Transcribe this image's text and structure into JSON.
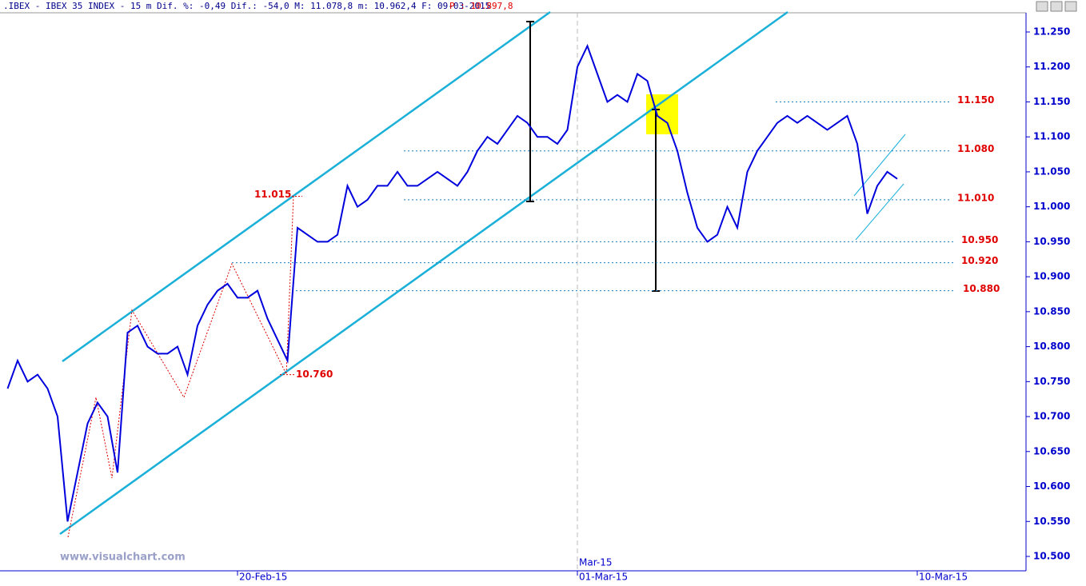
{
  "chart_data": {
    "type": "line",
    "header": {
      "text": ".IBEX - IBEX 35 INDEX -  15 m Dif. %: -0,49 Dif.: -54,0 M: 11.078,8 m: 10.962,4 F: 09-03-2015",
      "price": "P : 10.897,8"
    },
    "watermark": "www.visualchart.com",
    "month_label": "Mar-15",
    "categories": [
      null,
      null,
      null,
      null,
      null,
      null,
      null,
      null,
      null,
      null,
      null,
      null,
      null,
      null,
      null,
      null,
      null,
      null,
      null,
      null,
      null,
      null,
      null,
      "20-Feb-15",
      null,
      null,
      null,
      null,
      null,
      null,
      null,
      null,
      null,
      null,
      null,
      null,
      null,
      null,
      null,
      null,
      null,
      null,
      null,
      null,
      null,
      null,
      null,
      null,
      null,
      null,
      null,
      null,
      null,
      null,
      null,
      null,
      null,
      "01-Mar-15",
      null,
      null,
      null,
      null,
      null,
      null,
      null,
      null,
      null,
      null,
      null,
      null,
      null,
      null,
      null,
      null,
      null,
      null,
      null,
      null,
      null,
      null,
      null,
      null,
      null,
      null,
      null,
      null,
      null,
      null,
      null,
      null,
      null,
      "10-Mar-15"
    ],
    "series": [
      {
        "name": "IBEX 35",
        "color": "#0000dd",
        "values": [
          10.74,
          10.78,
          10.75,
          10.76,
          10.74,
          10.7,
          10.55,
          10.62,
          10.69,
          10.72,
          10.7,
          10.62,
          10.82,
          10.83,
          10.8,
          10.79,
          10.79,
          10.8,
          10.76,
          10.83,
          10.86,
          10.88,
          10.89,
          10.87,
          10.87,
          10.88,
          10.84,
          10.81,
          10.78,
          10.97,
          10.96,
          10.95,
          10.95,
          10.96,
          11.03,
          11.0,
          11.01,
          11.03,
          11.03,
          11.05,
          11.03,
          11.03,
          11.04,
          11.05,
          11.04,
          11.03,
          11.05,
          11.08,
          11.1,
          11.09,
          11.11,
          11.13,
          11.12,
          11.1,
          11.1,
          11.09,
          11.11,
          11.2,
          11.23,
          11.19,
          11.15,
          11.16,
          11.15,
          11.19,
          11.18,
          11.13,
          11.12,
          11.08,
          11.02,
          10.97,
          10.95,
          10.96,
          11.0,
          10.97,
          11.05,
          11.08,
          11.1,
          11.12,
          11.13,
          11.12,
          11.13,
          11.12,
          11.11,
          11.12,
          11.13,
          11.09,
          10.99,
          11.03,
          11.05,
          11.04,
          null,
          null
        ]
      }
    ],
    "ylim": [
      10.5,
      11.25
    ],
    "yticks": [
      {
        "value": 11.25,
        "label": "11.250"
      },
      {
        "value": 11.2,
        "label": "11.200"
      },
      {
        "value": 11.15,
        "label": "11.150"
      },
      {
        "value": 11.1,
        "label": "11.100"
      },
      {
        "value": 11.05,
        "label": "11.050"
      },
      {
        "value": 11.0,
        "label": "11.000"
      },
      {
        "value": 10.95,
        "label": "10.950"
      },
      {
        "value": 10.9,
        "label": "10.900"
      },
      {
        "value": 10.85,
        "label": "10.850"
      },
      {
        "value": 10.8,
        "label": "10.800"
      },
      {
        "value": 10.75,
        "label": "10.750"
      },
      {
        "value": 10.7,
        "label": "10.700"
      },
      {
        "value": 10.65,
        "label": "10.650"
      },
      {
        "value": 10.6,
        "label": "10.600"
      },
      {
        "value": 10.55,
        "label": "10.550"
      },
      {
        "value": 10.5,
        "label": "10.500"
      }
    ],
    "levels": [
      {
        "value": 11.15,
        "label": "11.150"
      },
      {
        "value": 11.08,
        "label": "11.080"
      },
      {
        "value": 11.01,
        "label": "11.010"
      },
      {
        "value": 10.95,
        "label": "10.950"
      },
      {
        "value": 10.92,
        "label": "10.920"
      },
      {
        "value": 10.88,
        "label": "10.880"
      }
    ],
    "annotations": [
      {
        "value": 11.015,
        "label": "11.015"
      },
      {
        "value": 10.76,
        "label": "10.760"
      }
    ]
  }
}
